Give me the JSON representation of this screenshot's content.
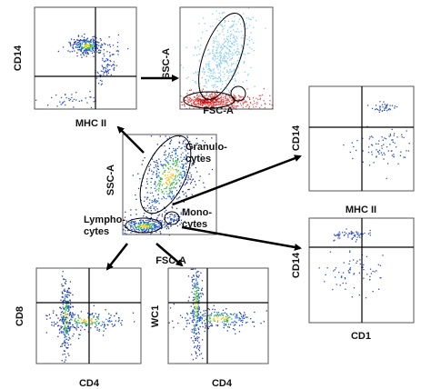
{
  "panels": [
    {
      "y_label": "CD14",
      "x_label": "MHC II"
    },
    {
      "y_label": "SSC-A",
      "x_label": "FSC-A"
    },
    {
      "y_label": "SSC-A",
      "x_label": "FSC-A",
      "gates": [
        {
          "lines": [
            "Granulo-",
            "cytes"
          ]
        },
        {
          "lines": [
            "Mono-",
            "cytes"
          ]
        },
        {
          "lines": [
            "Lympho-",
            "cytes"
          ]
        }
      ]
    },
    {
      "y_label": "CD14",
      "x_label": "MHC II"
    },
    {
      "y_label": "CD14",
      "x_label": "CD1"
    },
    {
      "y_label": "CD8",
      "x_label": "CD4"
    },
    {
      "y_label": "WC1",
      "x_label": "CD4"
    }
  ]
}
